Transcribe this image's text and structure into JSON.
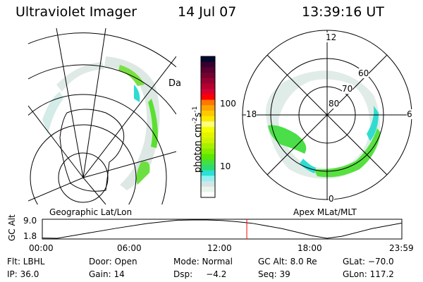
{
  "header": {
    "instrument": "Ultraviolet Imager",
    "date": "14 Jul 07",
    "time": "13:39:16 UT"
  },
  "left_panel": {
    "label": "Geographic Lat/Lon"
  },
  "right_panel": {
    "label": "Apex MLat/MLT",
    "mlt_labels": [
      "12",
      "6",
      "0",
      "18"
    ],
    "lat_labels": [
      "80",
      "70",
      "60"
    ]
  },
  "colorbar": {
    "unit": "photon cm",
    "exp1": "-2",
    "s": "s",
    "exp2": "-1",
    "ticks": [
      "100",
      "10"
    ],
    "colors": [
      "#000a30",
      "#38002e",
      "#580030",
      "#760030",
      "#960030",
      "#b40030",
      "#d80030",
      "#ff0000",
      "#ff7800",
      "#ffa400",
      "#ffc800",
      "#ffe800",
      "#ffff80",
      "#f6ff00",
      "#e4f400",
      "#ccf400",
      "#aaf000",
      "#84ec00",
      "#5ae800",
      "#44e040",
      "#2cdc70",
      "#2ce0d4",
      "#90f0f4",
      "#d4e4e4",
      "#e8f4ec",
      "#ffffff"
    ]
  },
  "chart_data": {
    "type": "line",
    "ylabel": "GC Alt",
    "yticks": [
      "9.0",
      "1.8"
    ],
    "xticks": [
      "00:00",
      "06:00",
      "12:00",
      "18:00",
      "23:59"
    ],
    "x": [
      0,
      1,
      3,
      5,
      7,
      9,
      10,
      11,
      12,
      13,
      14,
      16,
      18,
      19,
      20,
      22,
      24
    ],
    "y": [
      1.9,
      1.8,
      3.8,
      5.8,
      7.6,
      8.9,
      9.0,
      9.0,
      8.8,
      8.3,
      7.7,
      5.6,
      2.8,
      1.8,
      2.6,
      5.6,
      7.8
    ],
    "ylim": [
      1.8,
      9.0
    ],
    "marker_time": 13.65,
    "marker_color": "#ff0000"
  },
  "status": {
    "flt": "Flt: LBHL",
    "door": "Door: Open",
    "mode": "Mode: Normal",
    "gcalt": "GC Alt: 8.0 Re",
    "glat": "GLat: −70.0",
    "ip": "IP: 36.0",
    "gain": "Gain: 14",
    "dsp": "Dsp:     −4.2",
    "seq": "Seq: 39",
    "glon": "GLon: 117.2"
  }
}
